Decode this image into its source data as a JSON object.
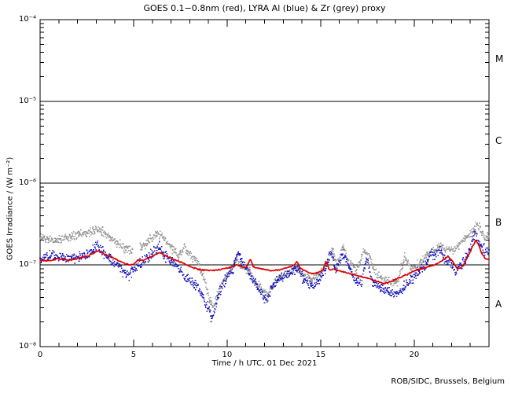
{
  "chart": {
    "title": "GOES 0.1−0.8nm (red), LYRA Al (blue) & Zr (grey) proxy",
    "credit": "ROB/SIDC, Brussels, Belgium",
    "x_axis": {
      "label": "Time / h UTC, 01 Dec 2021",
      "min": 0,
      "max": 24,
      "minor_step": 1,
      "major_ticks": [
        {
          "value": 0,
          "label": "0"
        },
        {
          "value": 5,
          "label": "5"
        },
        {
          "value": 10,
          "label": "10"
        },
        {
          "value": 15,
          "label": "15"
        },
        {
          "value": 20,
          "label": "20"
        }
      ]
    },
    "y_axis": {
      "label": "GOES Irradiance / (W m⁻²)",
      "scale": "log",
      "min_exp": -8,
      "max_exp": -4,
      "ticks": [
        {
          "exp": -4,
          "label": "10⁻⁴"
        },
        {
          "exp": -5,
          "label": "10⁻⁵"
        },
        {
          "exp": -6,
          "label": "10⁻⁶"
        },
        {
          "exp": -7,
          "label": "10⁻⁷"
        },
        {
          "exp": -8,
          "label": "10⁻⁸"
        }
      ]
    },
    "class_boundary_lines_exp": [
      -5,
      -6,
      -7
    ],
    "flare_classes": [
      {
        "label": "M",
        "mid_exp": -4.5
      },
      {
        "label": "C",
        "mid_exp": -5.5
      },
      {
        "label": "B",
        "mid_exp": -6.5
      },
      {
        "label": "A",
        "mid_exp": -7.5
      }
    ],
    "colors": {
      "goes_red": "#dd0000",
      "lyra_al_blue": "#2020c0",
      "lyra_zr_grey": "#999999",
      "axis": "#000000",
      "background": "#ffffff"
    }
  },
  "chart_data": {
    "type": "line",
    "x_unit": "hour UTC, 01 Dec 2021",
    "y_unit": "W m-2",
    "x_range": [
      0,
      24
    ],
    "y_range": [
      1e-08,
      0.0001
    ],
    "seed": 1201,
    "series": [
      {
        "name": "GOES 0.1-0.8nm",
        "color_key": "goes_red",
        "style": "line",
        "spread_log10": 0.008,
        "points": [
          [
            0.0,
            1.15e-07
          ],
          [
            0.3,
            1.12e-07
          ],
          [
            0.6,
            1.13e-07
          ],
          [
            0.9,
            1.18e-07
          ],
          [
            1.2,
            1.16e-07
          ],
          [
            1.5,
            1.14e-07
          ],
          [
            1.8,
            1.17e-07
          ],
          [
            2.1,
            1.22e-07
          ],
          [
            2.4,
            1.26e-07
          ],
          [
            2.7,
            1.32e-07
          ],
          [
            3.0,
            1.45e-07
          ],
          [
            3.15,
            1.5e-07
          ],
          [
            3.3,
            1.4e-07
          ],
          [
            3.6,
            1.3e-07
          ],
          [
            3.9,
            1.22e-07
          ],
          [
            4.2,
            1.12e-07
          ],
          [
            4.5,
            1.05e-07
          ],
          [
            4.8,
            9.9e-08
          ],
          [
            5.0,
            1.02e-07
          ],
          [
            5.2,
            1.14e-07
          ],
          [
            5.5,
            1.13e-07
          ],
          [
            5.8,
            1.22e-07
          ],
          [
            6.1,
            1.32e-07
          ],
          [
            6.4,
            1.42e-07
          ],
          [
            6.7,
            1.3e-07
          ],
          [
            7.0,
            1.2e-07
          ],
          [
            7.3,
            1.13e-07
          ],
          [
            7.6,
            1.06e-07
          ],
          [
            7.9,
            9.8e-08
          ],
          [
            8.2,
            9.2e-08
          ],
          [
            8.6,
            8.7e-08
          ],
          [
            9.0,
            8.5e-08
          ],
          [
            9.4,
            8.6e-08
          ],
          [
            9.8,
            9e-08
          ],
          [
            10.2,
            9.3e-08
          ],
          [
            10.5,
            1e-07
          ],
          [
            10.7,
            9.7e-08
          ],
          [
            11.0,
            9.2e-08
          ],
          [
            11.25,
            1.18e-07
          ],
          [
            11.4,
            9.5e-08
          ],
          [
            11.7,
            9e-08
          ],
          [
            12.0,
            8.8e-08
          ],
          [
            12.4,
            8.5e-08
          ],
          [
            12.8,
            8.7e-08
          ],
          [
            13.2,
            9.2e-08
          ],
          [
            13.6,
            1e-07
          ],
          [
            13.75,
            1.1e-07
          ],
          [
            13.9,
            9.2e-08
          ],
          [
            14.2,
            8.4e-08
          ],
          [
            14.5,
            7.8e-08
          ],
          [
            14.8,
            8e-08
          ],
          [
            15.1,
            8.5e-08
          ],
          [
            15.3,
            1.12e-07
          ],
          [
            15.45,
            8.8e-08
          ],
          [
            15.7,
            8.8e-08
          ],
          [
            16.0,
            8.5e-08
          ],
          [
            16.4,
            8e-08
          ],
          [
            16.8,
            7.6e-08
          ],
          [
            17.2,
            7.2e-08
          ],
          [
            17.6,
            6.8e-08
          ],
          [
            18.0,
            6.3e-08
          ],
          [
            18.4,
            5.9e-08
          ],
          [
            18.8,
            6.3e-08
          ],
          [
            19.2,
            7e-08
          ],
          [
            19.6,
            7.6e-08
          ],
          [
            20.0,
            8.4e-08
          ],
          [
            20.4,
            9e-08
          ],
          [
            20.8,
            9.6e-08
          ],
          [
            21.2,
            1.02e-07
          ],
          [
            21.5,
            1.12e-07
          ],
          [
            21.8,
            1.28e-07
          ],
          [
            22.0,
            1.15e-07
          ],
          [
            22.3,
            9e-08
          ],
          [
            22.5,
            9.2e-08
          ],
          [
            22.7,
            1.05e-07
          ],
          [
            22.9,
            1.3e-07
          ],
          [
            23.1,
            1.65e-07
          ],
          [
            23.3,
            2e-07
          ],
          [
            23.45,
            1.75e-07
          ],
          [
            23.6,
            1.4e-07
          ],
          [
            23.8,
            1.2e-07
          ],
          [
            24.0,
            1.15e-07
          ]
        ]
      },
      {
        "name": "LYRA Al proxy",
        "color_key": "lyra_al_blue",
        "style": "dots",
        "spread_log10": 0.06,
        "points": [
          [
            0.0,
            1.22e-07
          ],
          [
            0.4,
            1.28e-07
          ],
          [
            0.8,
            1.32e-07
          ],
          [
            1.2,
            1.24e-07
          ],
          [
            1.6,
            1.2e-07
          ],
          [
            2.0,
            1.26e-07
          ],
          [
            2.4,
            1.3e-07
          ],
          [
            2.8,
            1.45e-07
          ],
          [
            3.1,
            1.75e-07
          ],
          [
            3.3,
            1.45e-07
          ],
          [
            3.6,
            1.25e-07
          ],
          [
            4.0,
            1.08e-07
          ],
          [
            4.4,
            8.5e-08
          ],
          [
            4.7,
            7.5e-08
          ],
          [
            5.0,
            9e-08
          ],
          [
            5.4,
            1.05e-07
          ],
          [
            5.8,
            1.25e-07
          ],
          [
            6.1,
            1.45e-07
          ],
          [
            6.4,
            1.65e-07
          ],
          [
            6.6,
            1.35e-07
          ],
          [
            6.9,
            1.15e-07
          ],
          [
            7.2,
            1e-07
          ],
          [
            7.5,
            8.5e-08
          ],
          [
            7.8,
            7e-08
          ],
          [
            8.1,
            6.2e-08
          ],
          [
            8.4,
            5.5e-08
          ],
          [
            8.7,
            4e-08
          ],
          [
            9.0,
            2.8e-08
          ],
          [
            9.2,
            2.2e-08
          ],
          [
            9.45,
            3.5e-08
          ],
          [
            9.7,
            5.5e-08
          ],
          [
            10.0,
            7e-08
          ],
          [
            10.3,
            9e-08
          ],
          [
            10.6,
            1.4e-07
          ],
          [
            10.8,
            1.1e-07
          ],
          [
            11.1,
            8.5e-08
          ],
          [
            11.4,
            6.5e-08
          ],
          [
            11.8,
            4.5e-08
          ],
          [
            12.1,
            3.8e-08
          ],
          [
            12.4,
            5e-08
          ],
          [
            12.7,
            6.5e-08
          ],
          [
            13.0,
            7.5e-08
          ],
          [
            13.4,
            8e-08
          ],
          [
            13.7,
            9.5e-08
          ],
          [
            14.0,
            7.2e-08
          ],
          [
            14.4,
            6e-08
          ],
          [
            14.7,
            5.5e-08
          ],
          [
            15.0,
            7e-08
          ],
          [
            15.3,
            9.5e-08
          ],
          [
            15.55,
            1.5e-07
          ],
          [
            15.8,
            9e-08
          ],
          [
            16.1,
            1.2e-07
          ],
          [
            16.3,
            1.4e-07
          ],
          [
            16.6,
            8e-08
          ],
          [
            16.9,
            6.2e-08
          ],
          [
            17.2,
            6e-08
          ],
          [
            17.45,
            1.2e-07
          ],
          [
            17.7,
            7e-08
          ],
          [
            18.0,
            5.5e-08
          ],
          [
            18.4,
            5e-08
          ],
          [
            18.8,
            4.6e-08
          ],
          [
            19.1,
            4.4e-08
          ],
          [
            19.4,
            5.2e-08
          ],
          [
            19.8,
            6.5e-08
          ],
          [
            20.2,
            8e-08
          ],
          [
            20.6,
            1e-07
          ],
          [
            20.9,
            1.45e-07
          ],
          [
            21.1,
            1.2e-07
          ],
          [
            21.35,
            1.6e-07
          ],
          [
            21.6,
            1.2e-07
          ],
          [
            21.9,
            1.05e-07
          ],
          [
            22.2,
            8.5e-08
          ],
          [
            22.5,
            9.5e-08
          ],
          [
            22.8,
            1.2e-07
          ],
          [
            23.0,
            1.6e-07
          ],
          [
            23.25,
            2.4e-07
          ],
          [
            23.45,
            1.9e-07
          ],
          [
            23.65,
            1.6e-07
          ],
          [
            23.85,
            1.45e-07
          ],
          [
            24.0,
            1.5e-07
          ]
        ]
      },
      {
        "name": "LYRA Zr proxy",
        "color_key": "lyra_zr_grey",
        "style": "dots",
        "spread_log10": 0.05,
        "gaps": [
          [
            4.95,
            5.35
          ]
        ],
        "points": [
          [
            0.0,
            2.2e-07
          ],
          [
            0.4,
            2.05e-07
          ],
          [
            0.8,
            2e-07
          ],
          [
            1.2,
            2.1e-07
          ],
          [
            1.6,
            2.2e-07
          ],
          [
            2.0,
            2.3e-07
          ],
          [
            2.4,
            2.45e-07
          ],
          [
            2.8,
            2.6e-07
          ],
          [
            3.1,
            2.8e-07
          ],
          [
            3.4,
            2.5e-07
          ],
          [
            3.7,
            2.2e-07
          ],
          [
            4.1,
            1.85e-07
          ],
          [
            4.5,
            1.6e-07
          ],
          [
            4.9,
            1.5e-07
          ],
          [
            5.4,
            1.6e-07
          ],
          [
            5.9,
            2.1e-07
          ],
          [
            6.2,
            2.45e-07
          ],
          [
            6.5,
            2.3e-07
          ],
          [
            6.8,
            1.9e-07
          ],
          [
            7.1,
            1.55e-07
          ],
          [
            7.4,
            1.3e-07
          ],
          [
            7.7,
            1.6e-07
          ],
          [
            8.0,
            1.35e-07
          ],
          [
            8.3,
            1.2e-07
          ],
          [
            8.7,
            8e-08
          ],
          [
            9.0,
            4e-08
          ],
          [
            9.25,
            3e-08
          ],
          [
            9.5,
            4.5e-08
          ],
          [
            9.8,
            6.5e-08
          ],
          [
            10.1,
            8e-08
          ],
          [
            10.5,
            1.2e-07
          ],
          [
            10.8,
            9.5e-08
          ],
          [
            11.2,
            8e-08
          ],
          [
            11.6,
            6e-08
          ],
          [
            11.9,
            4.8e-08
          ],
          [
            12.2,
            4.2e-08
          ],
          [
            12.5,
            6e-08
          ],
          [
            12.9,
            7.2e-08
          ],
          [
            13.3,
            8e-08
          ],
          [
            13.7,
            9.5e-08
          ],
          [
            14.1,
            7.5e-08
          ],
          [
            14.5,
            6.5e-08
          ],
          [
            15.0,
            8e-08
          ],
          [
            15.4,
            1.1e-07
          ],
          [
            15.6,
            1.6e-07
          ],
          [
            15.9,
            1e-07
          ],
          [
            16.2,
            1.75e-07
          ],
          [
            16.5,
            1.1e-07
          ],
          [
            16.9,
            8.5e-08
          ],
          [
            17.3,
            1.45e-07
          ],
          [
            17.6,
            1.3e-07
          ],
          [
            17.9,
            8.5e-08
          ],
          [
            18.3,
            6.8e-08
          ],
          [
            18.7,
            6e-08
          ],
          [
            19.1,
            6.2e-08
          ],
          [
            19.5,
            1.3e-07
          ],
          [
            19.8,
            9e-08
          ],
          [
            20.2,
            1e-07
          ],
          [
            20.6,
            1.25e-07
          ],
          [
            21.0,
            1.45e-07
          ],
          [
            21.4,
            1.7e-07
          ],
          [
            21.8,
            1.55e-07
          ],
          [
            22.1,
            1.5e-07
          ],
          [
            22.5,
            1.85e-07
          ],
          [
            22.9,
            2.2e-07
          ],
          [
            23.2,
            2.8e-07
          ],
          [
            23.4,
            3.1e-07
          ],
          [
            23.6,
            2.5e-07
          ],
          [
            23.8,
            2.2e-07
          ],
          [
            24.0,
            2.2e-07
          ]
        ]
      }
    ]
  }
}
